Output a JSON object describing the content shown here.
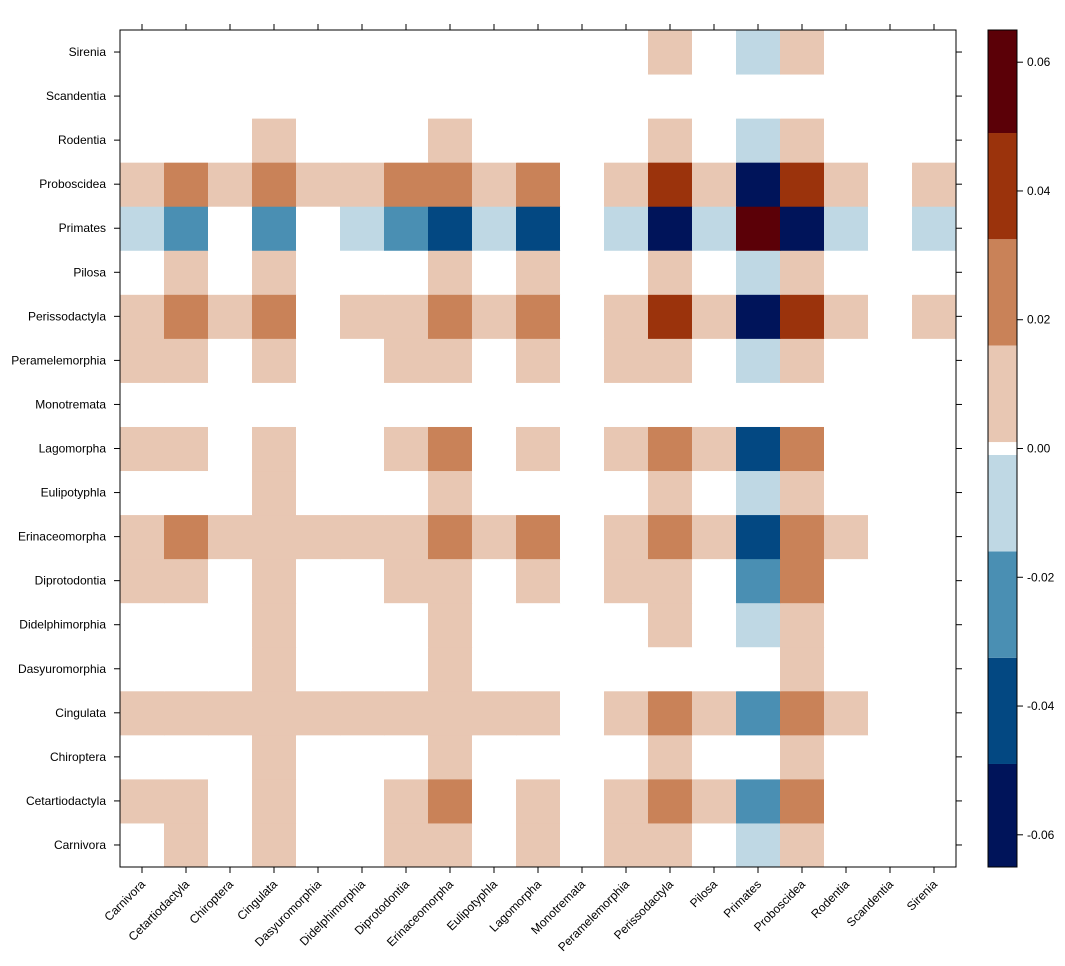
{
  "chart_data": {
    "type": "heatmap",
    "title": "",
    "xlabel": "",
    "ylabel": "",
    "x_categories": [
      "Carnivora",
      "Cetartiodactyla",
      "Chiroptera",
      "Cingulata",
      "Dasyuromorphia",
      "Didelphimorphia",
      "Diprotodontia",
      "Erinaceomorpha",
      "Eulipotyphla",
      "Lagomorpha",
      "Monotremata",
      "Peramelemorphia",
      "Perissodactyla",
      "Pilosa",
      "Primates",
      "Proboscidea",
      "Rodentia",
      "Scandentia",
      "Sirenia"
    ],
    "y_categories": [
      "Carnivora",
      "Cetartiodactyla",
      "Chiroptera",
      "Cingulata",
      "Dasyuromorphia",
      "Didelphimorphia",
      "Diprotodontia",
      "Erinaceomorpha",
      "Eulipotyphla",
      "Lagomorpha",
      "Monotremata",
      "Peramelemorphia",
      "Perissodactyla",
      "Pilosa",
      "Primates",
      "Proboscidea",
      "Rodentia",
      "Scandentia",
      "Sirenia"
    ],
    "values": [
      [
        0,
        0.008,
        0,
        0.008,
        0,
        0,
        0.008,
        0.008,
        0,
        0.008,
        0,
        0.008,
        0.008,
        0,
        -0.008,
        0.008,
        0,
        0,
        0
      ],
      [
        0.008,
        0.008,
        0,
        0.008,
        0,
        0,
        0.008,
        0.024,
        0,
        0.008,
        0,
        0.008,
        0.024,
        0.008,
        -0.024,
        0.024,
        0,
        0,
        0
      ],
      [
        0,
        0,
        0,
        0.008,
        0,
        0,
        0,
        0.008,
        0,
        0,
        0,
        0,
        0.008,
        0,
        0,
        0.008,
        0,
        0,
        0
      ],
      [
        0.008,
        0.008,
        0.008,
        0.008,
        0.008,
        0.008,
        0.008,
        0.008,
        0.008,
        0.008,
        0,
        0.008,
        0.024,
        0.008,
        -0.024,
        0.024,
        0.008,
        0,
        0
      ],
      [
        0,
        0,
        0,
        0.008,
        0,
        0,
        0,
        0.008,
        0,
        0,
        0,
        0,
        0,
        0,
        0,
        0.008,
        0,
        0,
        0
      ],
      [
        0,
        0,
        0,
        0.008,
        0,
        0,
        0,
        0.008,
        0,
        0,
        0,
        0,
        0.008,
        0,
        -0.008,
        0.008,
        0,
        0,
        0
      ],
      [
        0.008,
        0.008,
        0,
        0.008,
        0,
        0,
        0.008,
        0.008,
        0,
        0.008,
        0,
        0.008,
        0.008,
        0,
        -0.024,
        0.024,
        0,
        0,
        0
      ],
      [
        0.008,
        0.024,
        0.008,
        0.008,
        0.008,
        0.008,
        0.008,
        0.024,
        0.008,
        0.024,
        0,
        0.008,
        0.024,
        0.008,
        -0.04,
        0.024,
        0.008,
        0,
        0
      ],
      [
        0,
        0,
        0,
        0.008,
        0,
        0,
        0,
        0.008,
        0,
        0,
        0,
        0,
        0.008,
        0,
        -0.008,
        0.008,
        0,
        0,
        0
      ],
      [
        0.008,
        0.008,
        0,
        0.008,
        0,
        0,
        0.008,
        0.024,
        0,
        0.008,
        0,
        0.008,
        0.024,
        0.008,
        -0.04,
        0.024,
        0,
        0,
        0
      ],
      [
        0,
        0,
        0,
        0,
        0,
        0,
        0,
        0,
        0,
        0,
        0,
        0,
        0,
        0,
        0,
        0,
        0,
        0,
        0
      ],
      [
        0.008,
        0.008,
        0,
        0.008,
        0,
        0,
        0.008,
        0.008,
        0,
        0.008,
        0,
        0.008,
        0.008,
        0,
        -0.008,
        0.008,
        0,
        0,
        0
      ],
      [
        0.008,
        0.024,
        0.008,
        0.024,
        0,
        0.008,
        0.008,
        0.024,
        0.008,
        0.024,
        0,
        0.008,
        0.04,
        0.008,
        -0.057,
        0.04,
        0.008,
        0,
        0.008
      ],
      [
        0,
        0.008,
        0,
        0.008,
        0,
        0,
        0,
        0.008,
        0,
        0.008,
        0,
        0,
        0.008,
        0,
        -0.008,
        0.008,
        0,
        0,
        0
      ],
      [
        -0.008,
        -0.024,
        0,
        -0.024,
        0,
        -0.008,
        -0.024,
        -0.04,
        -0.008,
        -0.04,
        0,
        -0.008,
        -0.057,
        -0.008,
        0.057,
        -0.057,
        -0.008,
        0,
        -0.008
      ],
      [
        0.008,
        0.024,
        0.008,
        0.024,
        0.008,
        0.008,
        0.024,
        0.024,
        0.008,
        0.024,
        0,
        0.008,
        0.04,
        0.008,
        -0.057,
        0.04,
        0.008,
        0,
        0.008
      ],
      [
        0,
        0,
        0,
        0.008,
        0,
        0,
        0,
        0.008,
        0,
        0,
        0,
        0,
        0.008,
        0,
        -0.008,
        0.008,
        0,
        0,
        0
      ],
      [
        0,
        0,
        0,
        0,
        0,
        0,
        0,
        0,
        0,
        0,
        0,
        0,
        0,
        0,
        0,
        0,
        0,
        0,
        0
      ],
      [
        0,
        0,
        0,
        0,
        0,
        0,
        0,
        0,
        0,
        0,
        0,
        0,
        0.008,
        0,
        -0.008,
        0.008,
        0,
        0,
        0
      ]
    ],
    "colorbar": {
      "range": [
        -0.065,
        0.065
      ],
      "breaks": [
        -0.065,
        -0.049,
        -0.0325,
        -0.016,
        -0.001,
        0.001,
        0.016,
        0.0325,
        0.049,
        0.065
      ],
      "colors": [
        "#00145a",
        "#034882",
        "#4a8fb3",
        "#bfd8e4",
        "#ffffff",
        "#e8c7b3",
        "#c98258",
        "#9b330c",
        "#5b0007"
      ],
      "ticks": [
        -0.06,
        -0.04,
        -0.02,
        0,
        0.02,
        0.04,
        0.06
      ],
      "tick_labels": [
        "-0.06",
        "-0.04",
        "-0.02",
        "0.00",
        "0.02",
        "0.04",
        "0.06"
      ]
    },
    "grid": false,
    "legend": "right colorbar"
  }
}
